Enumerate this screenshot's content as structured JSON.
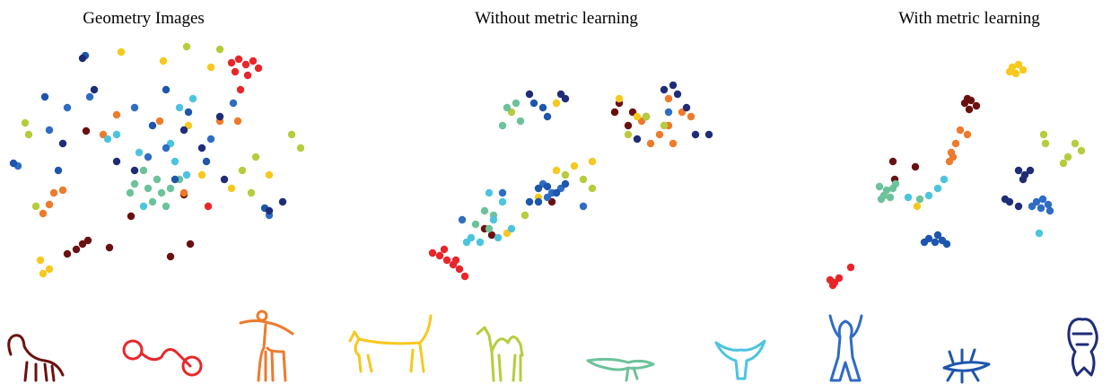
{
  "chart_data": [
    {
      "type": "scatter",
      "title": "Geometry Images",
      "xlim": [
        0,
        330
      ],
      "ylim": [
        0,
        270
      ],
      "series": [
        {
          "color": "#6b1010",
          "x": [
            65,
            75,
            82,
            88,
            112,
            180,
            202,
            136,
            195,
            86
          ],
          "y": [
            32,
            37,
            43,
            47,
            39,
            29,
            43,
            74,
            98,
            169
          ]
        },
        {
          "color": "#e8262a",
          "x": [
            248,
            256,
            264,
            272,
            278,
            252,
            266,
            258,
            222
          ],
          "y": [
            245,
            249,
            243,
            247,
            239,
            235,
            231,
            215,
            85
          ]
        },
        {
          "color": "#ee7a2c",
          "x": [
            50,
            60,
            45,
            38,
            120,
            105,
            195,
            255,
            235,
            168
          ],
          "y": [
            100,
            103,
            87,
            77,
            187,
            165,
            100,
            180,
            180,
            180
          ]
        },
        {
          "color": "#f7c81e",
          "x": [
            35,
            45,
            38,
            125,
            172,
            225,
            215,
            290,
            248,
            200
          ],
          "y": [
            25,
            15,
            10,
            257,
            247,
            240,
            120,
            120,
            105,
            175
          ]
        },
        {
          "color": "#b6cc3c",
          "x": [
            18,
            22,
            30,
            198,
            235,
            260,
            275,
            315,
            325,
            270
          ],
          "y": [
            178,
            165,
            85,
            263,
            260,
            125,
            140,
            165,
            150,
            100
          ]
        },
        {
          "color": "#6cc29a",
          "x": [
            140,
            155,
            170,
            150,
            165,
            180,
            135,
            175,
            160,
            190
          ],
          "y": [
            110,
            105,
            100,
            125,
            115,
            105,
            100,
            85,
            90,
            115
          ]
        },
        {
          "color": "#4cc4e0",
          "x": [
            120,
            145,
            185,
            198,
            205,
            110,
            150,
            180,
            190
          ],
          "y": [
            165,
            145,
            135,
            120,
            205,
            160,
            85,
            155,
            195
          ]
        },
        {
          "color": "#2f6cc4",
          "x": [
            10,
            45,
            90,
            65,
            140,
            175,
            225,
            290,
            155,
            250
          ],
          "y": [
            130,
            170,
            207,
            195,
            195,
            150,
            160,
            75,
            140,
            200
          ]
        },
        {
          "color": "#1d56ac",
          "x": [
            5,
            85,
            40,
            175,
            200,
            220,
            185,
            285,
            55,
            160
          ],
          "y": [
            133,
            253,
            207,
            215,
            190,
            135,
            115,
            83,
            125,
            175
          ]
        },
        {
          "color": "#1f2d78",
          "x": [
            82,
            95,
            60,
            120,
            195,
            235,
            215,
            290,
            305,
            240,
            140
          ],
          "y": [
            250,
            215,
            155,
            135,
            170,
            185,
            150,
            80,
            90,
            115,
            125
          ]
        }
      ]
    },
    {
      "type": "scatter",
      "title": "Without metric learning",
      "xlim": [
        0,
        330
      ],
      "ylim": [
        0,
        270
      ],
      "series": [
        {
          "color": "#6b1010",
          "x": [
            215,
            230,
            245,
            210,
            65,
            73,
            140,
            225
          ],
          "y": [
            200,
            190,
            185,
            190,
            60,
            53,
            90,
            175
          ]
        },
        {
          "color": "#e8262a",
          "x": [
            7,
            15,
            23,
            30,
            37,
            43,
            20,
            33
          ],
          "y": [
            33,
            30,
            25,
            20,
            15,
            7,
            37,
            25
          ]
        },
        {
          "color": "#ee7a2c",
          "x": [
            270,
            285,
            295,
            260,
            270,
            250,
            240,
            275
          ],
          "y": [
            205,
            190,
            185,
            165,
            175,
            155,
            180,
            155
          ]
        },
        {
          "color": "#f7c81e",
          "x": [
            145,
            165,
            185,
            125,
            90,
            215,
            235,
            145
          ],
          "y": [
            125,
            130,
            135,
            95,
            55,
            205,
            185,
            200
          ]
        },
        {
          "color": "#b6cc3c",
          "x": [
            95,
            245,
            225,
            265,
            155,
            175,
            110,
            185
          ],
          "y": [
            190,
            185,
            165,
            175,
            120,
            115,
            75,
            105
          ]
        },
        {
          "color": "#6cc29a",
          "x": [
            90,
            100,
            105,
            85,
            75,
            70,
            55,
            65
          ],
          "y": [
            195,
            200,
            180,
            175,
            75,
            60,
            65,
            80
          ]
        },
        {
          "color": "#4cc4e0",
          "x": [
            45,
            60,
            80,
            70,
            75,
            85,
            50,
            95
          ],
          "y": [
            45,
            45,
            50,
            100,
            70,
            90,
            50,
            60
          ]
        },
        {
          "color": "#2f6cc4",
          "x": [
            85,
            140,
            150,
            175,
            40,
            130,
            135,
            270
          ],
          "y": [
            100,
            100,
            105,
            85,
            70,
            110,
            95,
            190
          ]
        },
        {
          "color": "#1d56ac",
          "x": [
            120,
            130,
            135,
            125,
            135,
            145,
            115,
            125,
            155
          ],
          "y": [
            200,
            195,
            185,
            105,
            107,
            100,
            90,
            90,
            110
          ]
        },
        {
          "color": "#1f2d78",
          "x": [
            115,
            150,
            155,
            265,
            275,
            280,
            300,
            315,
            235,
            290
          ],
          "y": [
            210,
            210,
            205,
            215,
            220,
            210,
            165,
            165,
            160,
            195
          ]
        }
      ]
    },
    {
      "type": "scatter",
      "title": "With metric learning",
      "xlim": [
        0,
        300
      ],
      "ylim": [
        0,
        255
      ],
      "series": [
        {
          "color": "#6b1010",
          "x": [
            160,
            167,
            173,
            165,
            163,
            80,
            105,
            82
          ],
          "y": [
            205,
            208,
            202,
            198,
            210,
            140,
            134,
            120
          ]
        },
        {
          "color": "#e8262a",
          "x": [
            10,
            15,
            20,
            13,
            33
          ],
          "y": [
            8,
            5,
            10,
            2,
            22
          ]
        },
        {
          "color": "#ee7a2c",
          "x": [
            155,
            163,
            150,
            145,
            143,
            147
          ],
          "y": [
            175,
            170,
            160,
            150,
            140,
            145
          ]
        },
        {
          "color": "#f7c81e",
          "x": [
            213,
            220,
            225,
            217,
            210,
            107
          ],
          "y": [
            245,
            248,
            242,
            238,
            240,
            90
          ]
        },
        {
          "color": "#b6cc3c",
          "x": [
            248,
            250,
            283,
            290,
            275,
            270
          ],
          "y": [
            170,
            160,
            160,
            152,
            145,
            138
          ]
        },
        {
          "color": "#6cc29a",
          "x": [
            65,
            73,
            80,
            70,
            77,
            83,
            67,
            110
          ],
          "y": [
            112,
            108,
            110,
            102,
            100,
            115,
            98,
            98
          ]
        },
        {
          "color": "#4cc4e0",
          "x": [
            130,
            120,
            137,
            243,
            97
          ],
          "y": [
            110,
            102,
            120,
            60,
            100
          ]
        },
        {
          "color": "#2f6cc4",
          "x": [
            240,
            247,
            253,
            245,
            255,
            235
          ],
          "y": [
            95,
            98,
            92,
            88,
            85,
            90
          ]
        },
        {
          "color": "#1d56ac",
          "x": [
            120,
            127,
            135,
            140,
            130,
            115
          ],
          "y": [
            54,
            50,
            52,
            48,
            58,
            50
          ]
        },
        {
          "color": "#1f2d78",
          "x": [
            220,
            227,
            233,
            225,
            210,
            220,
            205
          ],
          "y": [
            130,
            125,
            130,
            120,
            95,
            90,
            98
          ]
        }
      ]
    }
  ]
}
